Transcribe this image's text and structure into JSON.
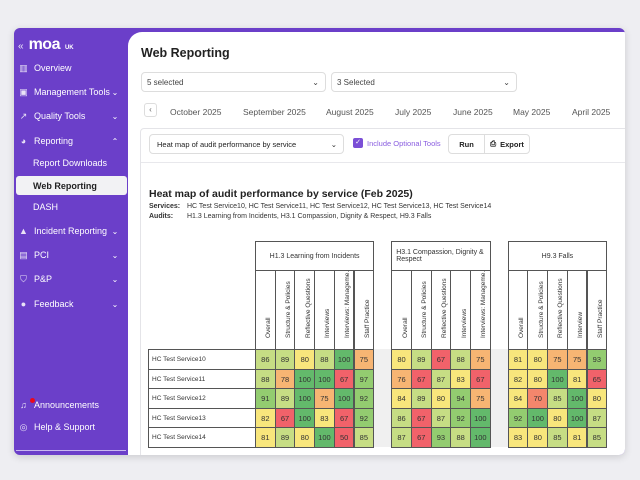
{
  "sidebar": {
    "logo": "moa",
    "logo_suffix": "UK",
    "items": [
      {
        "label": "Overview",
        "icon": "bar-chart-icon"
      },
      {
        "label": "Management Tools",
        "icon": "toolbox-icon",
        "chevron": "down"
      },
      {
        "label": "Quality Tools",
        "icon": "line-chart-icon",
        "chevron": "down"
      },
      {
        "label": "Reporting",
        "icon": "pie-chart-icon",
        "chevron": "up"
      },
      {
        "label": "Incident Reporting",
        "icon": "warning-icon",
        "chevron": "down"
      },
      {
        "label": "PCI",
        "icon": "card-icon",
        "chevron": "down"
      },
      {
        "label": "P&P",
        "icon": "shield-icon",
        "chevron": "down"
      },
      {
        "label": "Feedback",
        "icon": "chat-icon",
        "chevron": "down"
      }
    ],
    "reporting_sub": [
      "Report Downloads",
      "Web Reporting",
      "DASH"
    ],
    "active_sub": "Web Reporting",
    "bottom": [
      {
        "label": "Announcements",
        "icon": "bell-icon"
      },
      {
        "label": "Help & Support",
        "icon": "lifebuoy-icon"
      }
    ]
  },
  "header": {
    "title": "Web Reporting"
  },
  "filters": {
    "services": "5 selected",
    "audits": "3 Selected"
  },
  "months": [
    "October 2025",
    "September 2025",
    "August 2025",
    "July 2025",
    "June 2025",
    "May 2025",
    "April 2025"
  ],
  "toolbar": {
    "report": "Heat map of audit performance by service",
    "include_optional": "Include Optional Tools",
    "include_optional_checked": true,
    "run": "Run",
    "export": "Export"
  },
  "report": {
    "title": "Heat map of audit performance by service (Feb 2025)",
    "services_label": "Services:",
    "services": "HC Test Service10, HC Test Service11, HC Test Service12, HC Test Service13, HC Test Service14",
    "audits_label": "Audits:",
    "audits": "H1.3 Learning from Incidents, H3.1 Compassion, Dignity & Respect, H9.3 Falls"
  },
  "chart_data": {
    "type": "heatmap",
    "rows": [
      "HC Test Service10",
      "HC Test Service11",
      "HC Test Service12",
      "HC Test Service13",
      "HC Test Service14"
    ],
    "groups": [
      {
        "name": "H1.3 Learning from Incidents",
        "columns": [
          "Overall",
          "Structure & Policies",
          "Reflective Questions",
          "Interviews",
          "Interviews: Manageme...",
          "Staff Practice"
        ],
        "values": [
          [
            86,
            89,
            80,
            88,
            100,
            75
          ],
          [
            88,
            78,
            100,
            100,
            67,
            97
          ],
          [
            91,
            89,
            100,
            75,
            100,
            92
          ],
          [
            82,
            67,
            100,
            83,
            67,
            92
          ],
          [
            81,
            89,
            80,
            100,
            50,
            85
          ]
        ]
      },
      {
        "name": "H3.1 Compassion, Dignity & Respect",
        "columns": [
          "Overall",
          "Structure & Policies",
          "Reflective Questions",
          "Interviews",
          "Interviews: Manageme..."
        ],
        "values": [
          [
            80,
            89,
            67,
            88,
            75
          ],
          [
            76,
            67,
            87,
            83,
            67
          ],
          [
            84,
            89,
            80,
            94,
            75
          ],
          [
            86,
            67,
            87,
            92,
            100
          ],
          [
            87,
            67,
            93,
            88,
            100
          ]
        ]
      },
      {
        "name": "H9.3 Falls",
        "columns": [
          "Overall",
          "Structure & Policies",
          "Reflective Questions",
          "Interview",
          "Staff Practice"
        ],
        "values": [
          [
            81,
            80,
            75,
            75,
            93
          ],
          [
            82,
            80,
            100,
            81,
            65
          ],
          [
            84,
            70,
            85,
            100,
            80
          ],
          [
            92,
            100,
            80,
            100,
            87
          ],
          [
            83,
            80,
            85,
            81,
            85
          ]
        ]
      }
    ],
    "color_scale": [
      {
        "min": 100,
        "color": "#63b96b"
      },
      {
        "min": 90,
        "color": "#93cc70"
      },
      {
        "min": 85,
        "color": "#c6dd84"
      },
      {
        "min": 80,
        "color": "#f8e67c"
      },
      {
        "min": 75,
        "color": "#f7b573"
      },
      {
        "min": 70,
        "color": "#f4866c"
      },
      {
        "min": 0,
        "color": "#f1626a"
      }
    ]
  },
  "colors": {
    "brand": "#6b3fc9",
    "accent": "#7b4fd6"
  }
}
